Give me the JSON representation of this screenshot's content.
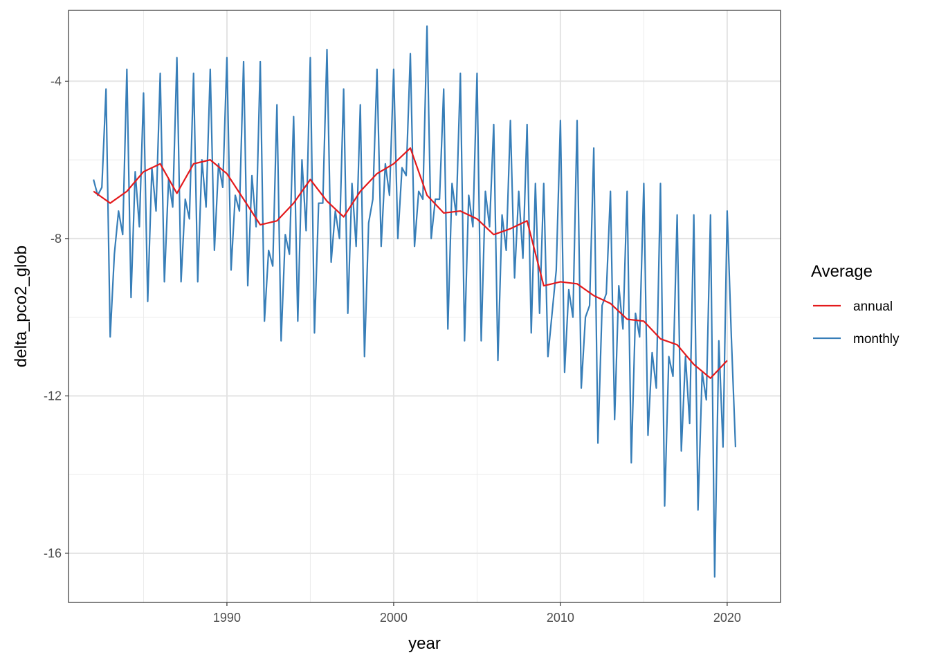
{
  "chart_data": {
    "type": "line",
    "title": "",
    "xlabel": "year",
    "ylabel": "delta_pco2_glob",
    "xlim": [
      1980.5,
      2023.2
    ],
    "ylim": [
      -17.25,
      -2.2
    ],
    "x_major_ticks": [
      1990,
      2000,
      2010,
      2020
    ],
    "x_minor_ticks": [
      1985,
      1995,
      2005,
      2015
    ],
    "y_major_ticks": [
      -16,
      -12,
      -8,
      -4
    ],
    "y_minor_ticks": [
      -14,
      -10,
      -6
    ],
    "x_tick_labels": [
      "1990",
      "2000",
      "2010",
      "2020"
    ],
    "y_tick_labels": [
      "-16",
      "-12",
      "-8",
      "-4"
    ],
    "grid": true,
    "legend": {
      "title": "Average",
      "position": "right",
      "entries": [
        "annual",
        "monthly"
      ]
    },
    "colors": {
      "annual": "#e41a1c",
      "monthly": "#377eb8"
    },
    "series": [
      {
        "name": "monthly",
        "x_start": 1982.0,
        "x_step": 0.25,
        "values": [
          -6.5,
          -6.9,
          -6.7,
          -4.2,
          -10.5,
          -8.4,
          -7.3,
          -7.9,
          -3.7,
          -9.5,
          -6.3,
          -7.7,
          -4.3,
          -9.6,
          -6.2,
          -7.3,
          -3.8,
          -9.1,
          -6.5,
          -7.2,
          -3.4,
          -9.1,
          -7.0,
          -7.5,
          -3.8,
          -9.1,
          -6.0,
          -7.2,
          -3.7,
          -8.3,
          -6.1,
          -6.7,
          -3.4,
          -8.8,
          -6.9,
          -7.3,
          -3.5,
          -9.2,
          -6.4,
          -7.7,
          -3.5,
          -10.1,
          -8.3,
          -8.7,
          -4.6,
          -10.6,
          -7.9,
          -8.4,
          -4.9,
          -10.1,
          -6.0,
          -7.8,
          -3.4,
          -10.4,
          -7.1,
          -7.1,
          -3.2,
          -8.6,
          -7.3,
          -8.0,
          -4.2,
          -9.9,
          -6.6,
          -8.2,
          -4.6,
          -11.0,
          -7.6,
          -7.0,
          -3.7,
          -8.2,
          -6.1,
          -6.9,
          -3.7,
          -8.0,
          -6.2,
          -6.4,
          -3.3,
          -8.2,
          -6.8,
          -7.0,
          -2.6,
          -8.0,
          -7.0,
          -7.0,
          -4.2,
          -10.3,
          -6.6,
          -7.4,
          -3.8,
          -10.6,
          -6.9,
          -7.7,
          -3.8,
          -10.6,
          -6.8,
          -7.7,
          -5.1,
          -11.1,
          -7.4,
          -8.3,
          -5.0,
          -9.0,
          -6.8,
          -8.5,
          -5.1,
          -10.4,
          -6.6,
          -9.9,
          -6.6,
          -11.0,
          -9.9,
          -8.8,
          -5.0,
          -11.4,
          -9.3,
          -10.0,
          -5.0,
          -11.8,
          -10.0,
          -9.7,
          -5.7,
          -13.2,
          -9.7,
          -9.4,
          -6.8,
          -12.6,
          -9.2,
          -10.3,
          -6.8,
          -13.7,
          -9.9,
          -10.5,
          -6.6,
          -13.0,
          -10.9,
          -11.8,
          -6.6,
          -14.8,
          -11.0,
          -11.5,
          -7.4,
          -13.4,
          -11.0,
          -12.7,
          -7.4,
          -14.9,
          -11.4,
          -12.1,
          -7.4,
          -16.6,
          -10.6,
          -13.3,
          -7.3,
          -10.5,
          -13.3
        ]
      },
      {
        "name": "annual",
        "x": [
          1982,
          1983,
          1984,
          1985,
          1986,
          1987,
          1988,
          1989,
          1990,
          1991,
          1992,
          1993,
          1994,
          1995,
          1996,
          1997,
          1998,
          1999,
          2000,
          2001,
          2002,
          2003,
          2004,
          2005,
          2006,
          2007,
          2008,
          2009,
          2010,
          2011,
          2012,
          2013,
          2014,
          2015,
          2016,
          2017,
          2018,
          2019,
          2020
        ],
        "values": [
          -6.8,
          -7.1,
          -6.8,
          -6.3,
          -6.1,
          -6.85,
          -6.1,
          -6.0,
          -6.35,
          -7.0,
          -7.65,
          -7.55,
          -7.1,
          -6.5,
          -7.05,
          -7.45,
          -6.8,
          -6.35,
          -6.1,
          -5.7,
          -6.9,
          -7.35,
          -7.3,
          -7.5,
          -7.9,
          -7.75,
          -7.55,
          -9.2,
          -9.1,
          -9.15,
          -9.45,
          -9.65,
          -10.05,
          -10.1,
          -10.55,
          -10.7,
          -11.2,
          -11.55,
          -11.1
        ]
      }
    ]
  }
}
